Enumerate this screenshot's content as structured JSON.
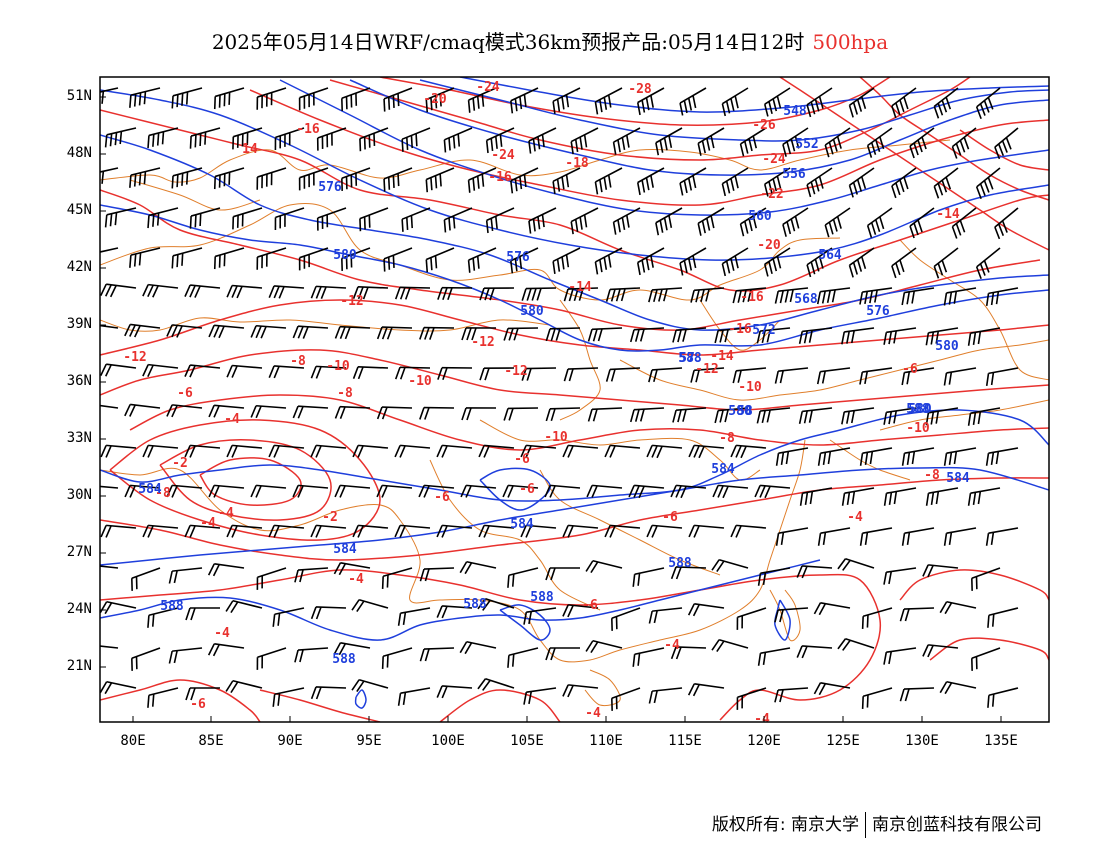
{
  "title": {
    "text": "2025年05月14日WRF/cmaq模式36km预报产品:05月14日12时",
    "level": "500hpa"
  },
  "colors": {
    "temperature": "#e8312e",
    "height": "#1f3fdc",
    "border": "#e07f2c",
    "wind": "#000000"
  },
  "icons": {
    "wind_barb": "wind-barb-icon"
  },
  "axes": {
    "lat_labels": [
      "51N",
      "48N",
      "45N",
      "42N",
      "39N",
      "36N",
      "33N",
      "30N",
      "27N",
      "24N",
      "21N"
    ],
    "lon_labels": [
      "80E",
      "85E",
      "90E",
      "95E",
      "100E",
      "105E",
      "110E",
      "115E",
      "120E",
      "125E",
      "130E",
      "135E"
    ]
  },
  "height_labels": [
    {
      "t": "548"
    },
    {
      "t": "552"
    },
    {
      "t": "556"
    },
    {
      "t": "560"
    },
    {
      "t": "564"
    },
    {
      "t": "568"
    },
    {
      "t": "572"
    },
    {
      "t": "576"
    },
    {
      "t": "576"
    },
    {
      "t": "576"
    },
    {
      "t": "580"
    },
    {
      "t": "580"
    },
    {
      "t": "580"
    },
    {
      "t": "580"
    },
    {
      "t": "580"
    },
    {
      "t": "584"
    },
    {
      "t": "584"
    },
    {
      "t": "584"
    },
    {
      "t": "584"
    },
    {
      "t": "584"
    },
    {
      "t": "588"
    },
    {
      "t": "588"
    },
    {
      "t": "588"
    },
    {
      "t": "588"
    },
    {
      "t": "588"
    },
    {
      "t": "588"
    },
    {
      "t": "588"
    },
    {
      "t": "57"
    },
    {
      "t": "58"
    }
  ],
  "temp_labels": [
    {
      "t": "-24"
    },
    {
      "t": "-20"
    },
    {
      "t": "-28"
    },
    {
      "t": "-24"
    },
    {
      "t": "-16"
    },
    {
      "t": "-26"
    },
    {
      "t": "14"
    },
    {
      "t": "-18"
    },
    {
      "t": "-16"
    },
    {
      "t": "-24"
    },
    {
      "t": "-22"
    },
    {
      "t": "-14"
    },
    {
      "t": "-20"
    },
    {
      "t": "-14"
    },
    {
      "t": "-12"
    },
    {
      "t": "-16"
    },
    {
      "t": "-16"
    },
    {
      "t": "-12"
    },
    {
      "t": "-12"
    },
    {
      "t": "-14"
    },
    {
      "t": "-12"
    },
    {
      "t": "-10"
    },
    {
      "t": "-8"
    },
    {
      "t": "-12"
    },
    {
      "t": "-10"
    },
    {
      "t": "-10"
    },
    {
      "t": "-8"
    },
    {
      "t": "-6"
    },
    {
      "t": "-6"
    },
    {
      "t": "-4"
    },
    {
      "t": "-10"
    },
    {
      "t": "-8"
    },
    {
      "t": "-10"
    },
    {
      "t": "-2"
    },
    {
      "t": "-6"
    },
    {
      "t": "-8"
    },
    {
      "t": "-6"
    },
    {
      "t": "-6"
    },
    {
      "t": "-2"
    },
    {
      "t": "-4"
    },
    {
      "t": "-6"
    },
    {
      "t": "-4"
    },
    {
      "t": "-4"
    },
    {
      "t": "-4"
    },
    {
      "t": "-6"
    },
    {
      "t": "-4"
    },
    {
      "t": "-4"
    },
    {
      "t": "-6"
    },
    {
      "t": "-4"
    },
    {
      "t": "-4"
    },
    {
      "t": "-8"
    }
  ],
  "credit": {
    "left": "版权所有: 南京大学",
    "right": "南京创蓝科技有限公司"
  }
}
